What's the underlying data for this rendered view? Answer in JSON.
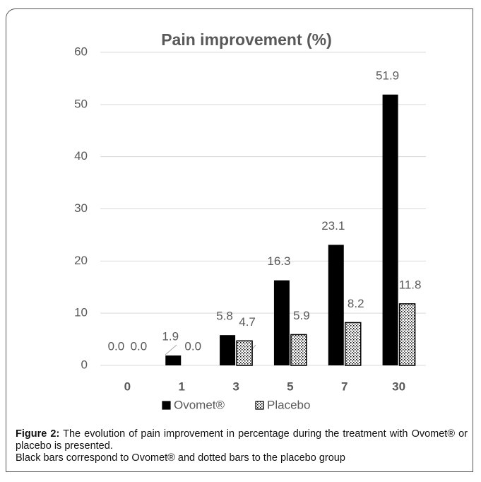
{
  "chart_data": {
    "type": "bar",
    "title": "Pain improvement (%)",
    "categories": [
      "0",
      "1",
      "3",
      "5",
      "7",
      "30"
    ],
    "series": [
      {
        "name": "Ovomet®",
        "color": "#000000",
        "values": [
          0,
          1.9,
          5.8,
          16.3,
          23.1,
          51.9
        ],
        "value_labels": [
          "0.0",
          "1.9",
          "5.8",
          "16.3",
          "23.1",
          "51.9"
        ]
      },
      {
        "name": "Placebo",
        "color": "#000000",
        "pattern": "dotted",
        "values": [
          0,
          0,
          4.7,
          5.9,
          8.2,
          11.8
        ],
        "value_labels": [
          "0.0",
          "0.0",
          "4.7",
          "5.9",
          "8.2",
          "11.8"
        ]
      }
    ],
    "ylim": [
      0,
      60
    ],
    "yticks": [
      0,
      10,
      20,
      30,
      40,
      50,
      60
    ],
    "grid": true,
    "legend": "bottom"
  },
  "caption": {
    "label": "Figure 2:",
    "text": "The evolution of pain improvement in percentage during the treatment with Ovomet® or placebo is presented.",
    "note": "Black bars correspond to Ovomet® and dotted bars to the placebo group"
  }
}
